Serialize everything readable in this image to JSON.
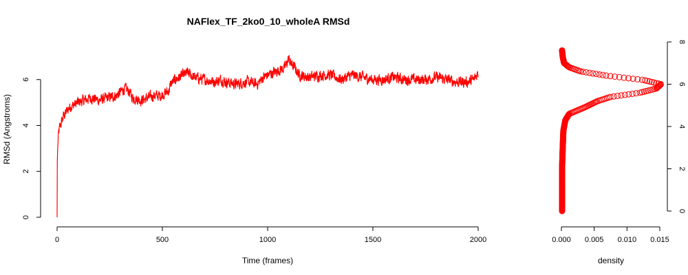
{
  "chart_data": [
    {
      "type": "line",
      "title": "NAFlex_TF_2ko0_10_wholeA RMSd",
      "xlabel": "Time (frames)",
      "ylabel": "RMSd (Angstroms)",
      "xlim": [
        0,
        2000
      ],
      "ylim": [
        0,
        7.4
      ],
      "x_ticks": [
        0,
        500,
        1000,
        1500,
        2000
      ],
      "x_tick_labels": [
        "0",
        "500",
        "1000",
        "1500",
        "2000"
      ],
      "y_ticks": [
        0,
        2,
        4,
        6
      ],
      "y_tick_labels": [
        "0",
        "2",
        "4",
        "6"
      ],
      "grid": false,
      "line_color": "#ff0000",
      "series": [
        {
          "x": [
            0,
            1,
            3,
            5,
            8,
            12,
            20,
            30,
            45,
            60,
            80,
            100,
            130,
            160,
            200,
            240,
            280,
            320,
            340,
            360,
            400,
            430,
            460,
            490,
            510,
            530,
            540,
            560,
            600,
            620,
            650,
            700,
            750,
            780,
            800,
            850,
            900,
            950,
            980,
            1000,
            1050,
            1080,
            1100,
            1110,
            1130,
            1150,
            1200,
            1250,
            1300,
            1350,
            1400,
            1450,
            1500,
            1550,
            1600,
            1650,
            1700,
            1750,
            1800,
            1850,
            1900,
            1950,
            1980,
            2000
          ],
          "y": [
            0,
            2.5,
            3.0,
            3.4,
            3.7,
            3.9,
            4.1,
            4.4,
            4.6,
            4.8,
            4.9,
            5.0,
            5.1,
            5.2,
            5.1,
            5.2,
            5.3,
            5.6,
            5.5,
            5.2,
            5.1,
            5.2,
            5.3,
            5.3,
            5.4,
            5.5,
            5.8,
            6.0,
            6.2,
            6.3,
            6.1,
            6.0,
            5.9,
            6.0,
            5.9,
            5.8,
            5.9,
            5.8,
            6.1,
            6.2,
            6.4,
            6.5,
            6.9,
            6.7,
            6.5,
            6.2,
            6.1,
            6.2,
            6.2,
            6.0,
            6.2,
            6.1,
            6.0,
            6.0,
            6.1,
            6.0,
            6.0,
            6.0,
            6.1,
            6.0,
            5.9,
            5.9,
            6.0,
            6.3
          ],
          "noise_amplitude": 0.35
        }
      ]
    },
    {
      "type": "scatter",
      "title": "",
      "xlabel": "density",
      "ylabel": "",
      "xlim": [
        0,
        0.015
      ],
      "ylim": [
        0,
        7.6
      ],
      "x_ticks": [
        0,
        0.005,
        0.01,
        0.015
      ],
      "x_tick_labels": [
        "0.000",
        "0.005",
        "0.010",
        "0.015"
      ],
      "y_ticks": [
        0,
        2,
        4,
        6,
        8
      ],
      "y_tick_labels": [
        "0",
        "2",
        "4",
        "6",
        "8"
      ],
      "y_axis_side": "right",
      "grid": false,
      "marker": "open-circle",
      "marker_color": "#ff0000",
      "density_curve": {
        "y": [
          0,
          1.0,
          2.0,
          3.0,
          3.8,
          4.3,
          4.6,
          4.9,
          5.2,
          5.4,
          5.6,
          5.8,
          6.0,
          6.2,
          6.4,
          6.6,
          6.8,
          7.0,
          7.3,
          7.6
        ],
        "density": [
          0.0001,
          0.0001,
          0.0001,
          0.0002,
          0.0003,
          0.0006,
          0.0012,
          0.0035,
          0.0055,
          0.0075,
          0.012,
          0.0145,
          0.0152,
          0.0125,
          0.007,
          0.003,
          0.0012,
          0.0004,
          0.0002,
          0.0001
        ]
      }
    }
  ]
}
